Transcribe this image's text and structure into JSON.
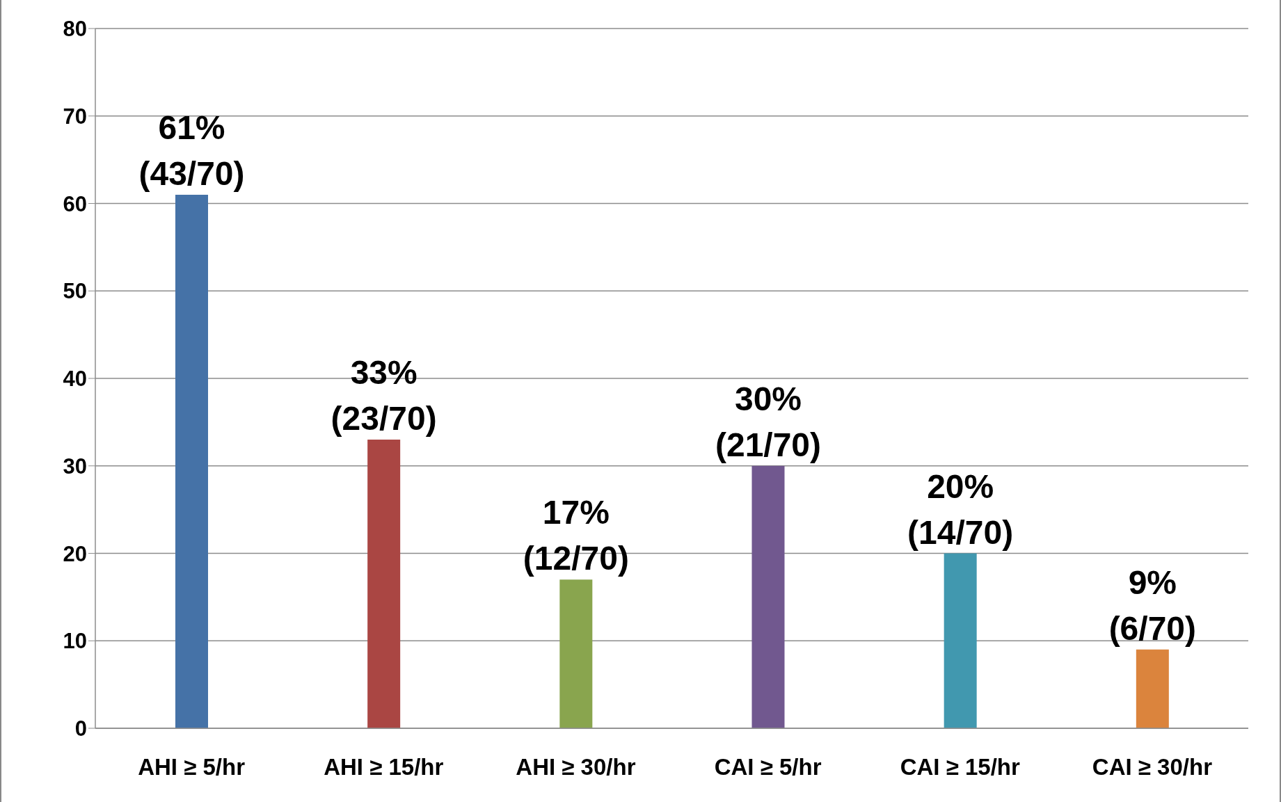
{
  "chart_data": {
    "type": "bar",
    "categories": [
      "AHI ≥ 5/hr",
      "AHI ≥ 15/hr",
      "AHI ≥ 30/hr",
      "CAI ≥ 5/hr",
      "CAI ≥ 15/hr",
      "CAI ≥ 30/hr"
    ],
    "values": [
      61,
      33,
      17,
      30,
      20,
      9
    ],
    "colors": [
      "#4572a7",
      "#aa4643",
      "#89a54e",
      "#71588f",
      "#4198af",
      "#db843d"
    ],
    "value_labels": [
      "61%\n(43/70)",
      "33%\n(23/70)",
      "17%\n(12/70)",
      "30%\n(21/70)",
      "20%\n(14/70)",
      "9%\n(6/70)"
    ],
    "ylim": [
      0,
      80
    ],
    "yticks": [
      0,
      10,
      20,
      30,
      40,
      50,
      60,
      70,
      80
    ],
    "grid": "y"
  }
}
